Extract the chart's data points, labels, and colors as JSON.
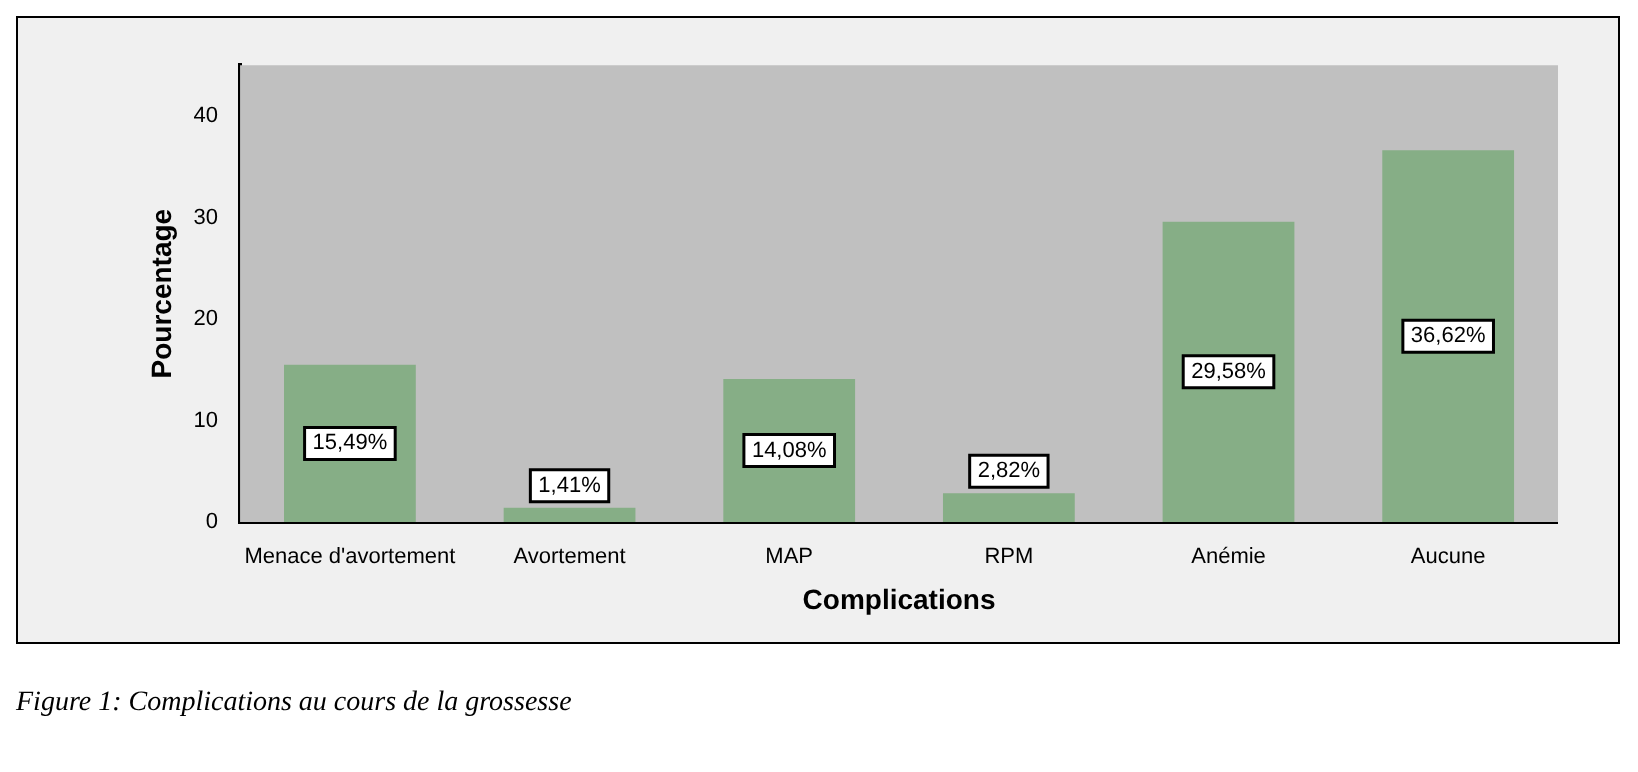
{
  "chart_data": {
    "type": "bar",
    "xlabel": "Complications",
    "ylabel": "Pourcentage",
    "categories": [
      "Menace d'avortement",
      "Avortement",
      "MAP",
      "RPM",
      "Anémie",
      "Aucune"
    ],
    "values": [
      15.49,
      1.41,
      14.08,
      2.82,
      29.58,
      36.62
    ],
    "value_labels": [
      "15,49%",
      "1,41%",
      "14,08%",
      "2,82%",
      "29,58%",
      "36,62%"
    ],
    "color": "#86ae86",
    "ylim": [
      0,
      45
    ],
    "yticks": [
      0,
      10,
      20,
      30,
      40
    ],
    "grid": false,
    "annotations": [
      "Figure 1: Complications au cours de la grossesse"
    ]
  }
}
